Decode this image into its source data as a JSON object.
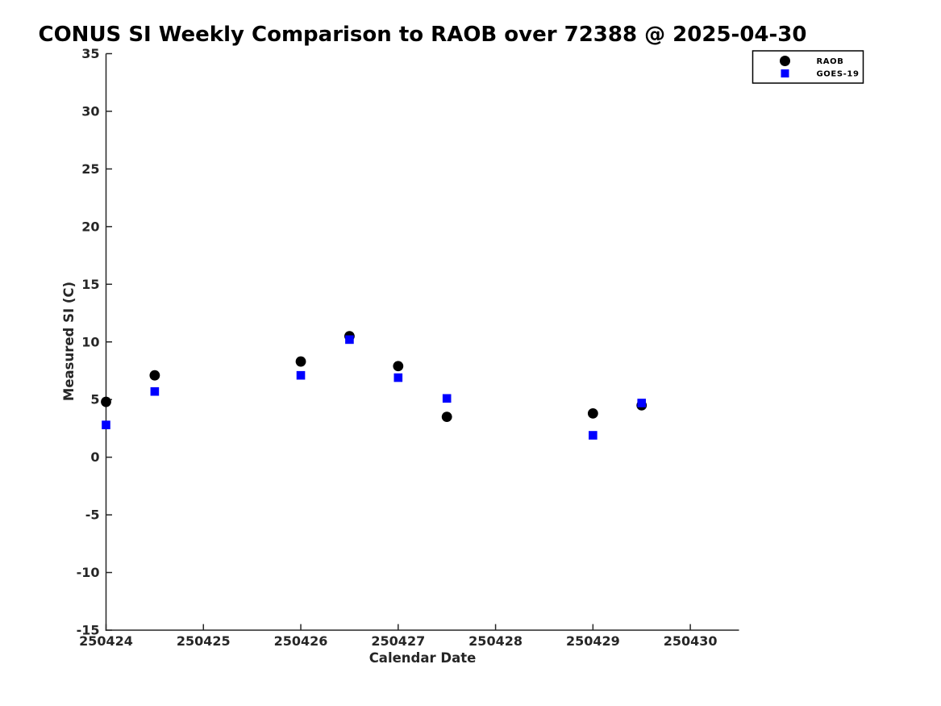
{
  "chart_data": {
    "type": "scatter",
    "title": "CONUS SI Weekly Comparison to RAOB over 72388 @ 2025-04-30",
    "xlabel": "Calendar Date",
    "ylabel": "Measured SI (C)",
    "xlim": [
      250424,
      250430.5
    ],
    "ylim": [
      -15,
      35
    ],
    "xticks": [
      250424,
      250425,
      250426,
      250427,
      250428,
      250429,
      250430
    ],
    "yticks": [
      35,
      30,
      25,
      20,
      15,
      10,
      5,
      0,
      -5,
      -10,
      -15
    ],
    "grid": false,
    "legend": {
      "position": "top-right",
      "entries": [
        "RAOB",
        "GOES-19"
      ]
    },
    "colors": {
      "raob": "#000000",
      "goes19": "#0000ff",
      "axis": "#262626",
      "background": "#ffffff"
    },
    "series": [
      {
        "name": "RAOB",
        "marker": "circle",
        "color": "#000000",
        "x": [
          250424.0,
          250424.5,
          250426.0,
          250426.5,
          250427.0,
          250427.5,
          250429.0,
          250429.5
        ],
        "y": [
          4.8,
          7.1,
          8.3,
          10.5,
          7.9,
          3.5,
          3.8,
          4.5
        ]
      },
      {
        "name": "GOES-19",
        "marker": "square",
        "color": "#0000ff",
        "x": [
          250424.0,
          250424.5,
          250426.0,
          250426.5,
          250427.0,
          250427.5,
          250429.0,
          250429.5
        ],
        "y": [
          2.8,
          5.7,
          7.1,
          10.2,
          6.9,
          5.1,
          1.9,
          4.7
        ]
      }
    ]
  }
}
